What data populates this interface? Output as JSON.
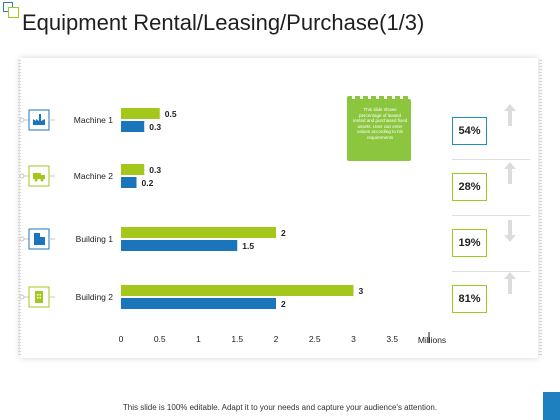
{
  "slide": {
    "title": "Equipment Rental/Leasing/Purchase(1/3)",
    "footer": "This slide is 100% editable. Adapt it to your needs and capture your audience's attention."
  },
  "note": {
    "text": "This slide shows percentage of leased rented and purchased fixed assets. User can enter values according to his requirements"
  },
  "percentages": [
    {
      "value": "54%",
      "trend": "up"
    },
    {
      "value": "28%",
      "trend": "up"
    },
    {
      "value": "19%",
      "trend": "down"
    },
    {
      "value": "81%",
      "trend": "up"
    }
  ],
  "colors": {
    "green": "#a3c81b",
    "blue": "#1b75bb"
  },
  "chart_data": {
    "type": "bar",
    "orientation": "horizontal",
    "categories": [
      "Machine 1",
      "Machine 2",
      "Building 1",
      "Building 2"
    ],
    "category_icons": [
      "factory-icon",
      "truck-icon",
      "office-building-icon",
      "building-icon"
    ],
    "series": [
      {
        "name": "",
        "color": "#a3c81b",
        "values": [
          0.5,
          0.3,
          2,
          3
        ]
      },
      {
        "name": "",
        "color": "#1b75bb",
        "values": [
          0.3,
          0.2,
          1.5,
          2
        ]
      }
    ],
    "xlabel": "Millions",
    "xlim": [
      0,
      3.5
    ],
    "xticks": [
      "0",
      "0.5",
      "1",
      "1.5",
      "2",
      "2.5",
      "3",
      "3.5"
    ],
    "grid": false,
    "data_labels": true
  }
}
